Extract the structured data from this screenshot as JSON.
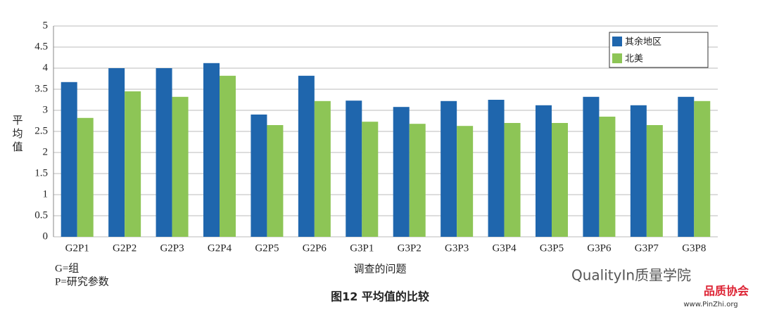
{
  "chart_data": {
    "type": "bar",
    "y_label": "平均值",
    "x_label": "调查的问题",
    "caption": "图12 平均值的比较",
    "notes": [
      "G=组",
      "P=研究参数"
    ],
    "watermark": "QualityIn质量学院",
    "logo_text": "品质协会",
    "logo_url": "www.PinZhi.org",
    "categories": [
      "G2P1",
      "G2P2",
      "G2P3",
      "G2P4",
      "G2P5",
      "G2P6",
      "G3P1",
      "G3P2",
      "G3P3",
      "G3P4",
      "G3P5",
      "G3P6",
      "G3P7",
      "G3P8"
    ],
    "series": [
      {
        "name": "其余地区",
        "color": "#1f66ad",
        "values": [
          3.67,
          4.0,
          4.0,
          4.12,
          2.9,
          3.82,
          3.23,
          3.08,
          3.22,
          3.25,
          3.12,
          3.32,
          3.12,
          3.32
        ]
      },
      {
        "name": "北美",
        "color": "#8dc556",
        "values": [
          2.82,
          3.45,
          3.32,
          3.82,
          2.65,
          3.22,
          2.73,
          2.68,
          2.63,
          2.7,
          2.7,
          2.85,
          2.65,
          3.22
        ]
      }
    ],
    "ylim": [
      0,
      5
    ],
    "yticks": [
      0,
      0.5,
      1,
      1.5,
      2,
      2.5,
      3,
      3.5,
      4,
      4.5,
      5
    ],
    "grid": true,
    "legend": "upper right"
  }
}
